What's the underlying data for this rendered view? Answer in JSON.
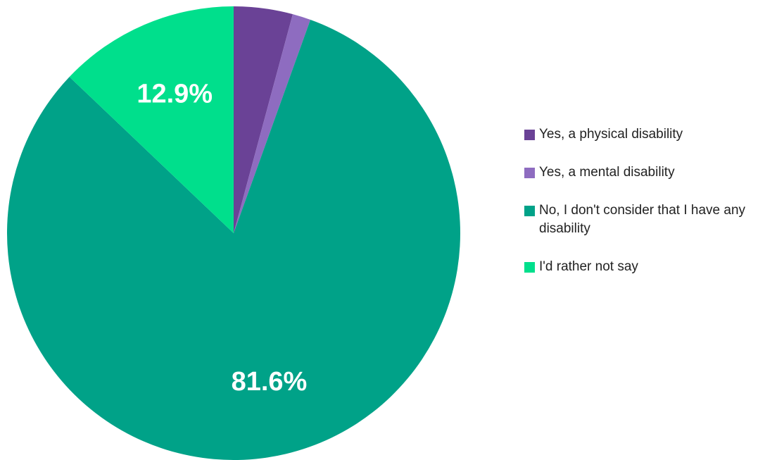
{
  "chart_data": {
    "type": "pie",
    "title": "",
    "start_angle_deg": 0,
    "direction": "clockwise",
    "slices": [
      {
        "name": "Yes, a physical disability",
        "value": 4.2,
        "color": "#6a4296",
        "label": ""
      },
      {
        "name": "Yes, a mental disability",
        "value": 1.3,
        "color": "#8e6cc0",
        "label": ""
      },
      {
        "name": "No, I don't consider that I have any disability",
        "value": 81.6,
        "color": "#00a288",
        "label": "81.6%"
      },
      {
        "name": "I'd rather not say",
        "value": 12.9,
        "color": "#00df8c",
        "label": "12.9%"
      }
    ],
    "legend_placement": "right"
  }
}
